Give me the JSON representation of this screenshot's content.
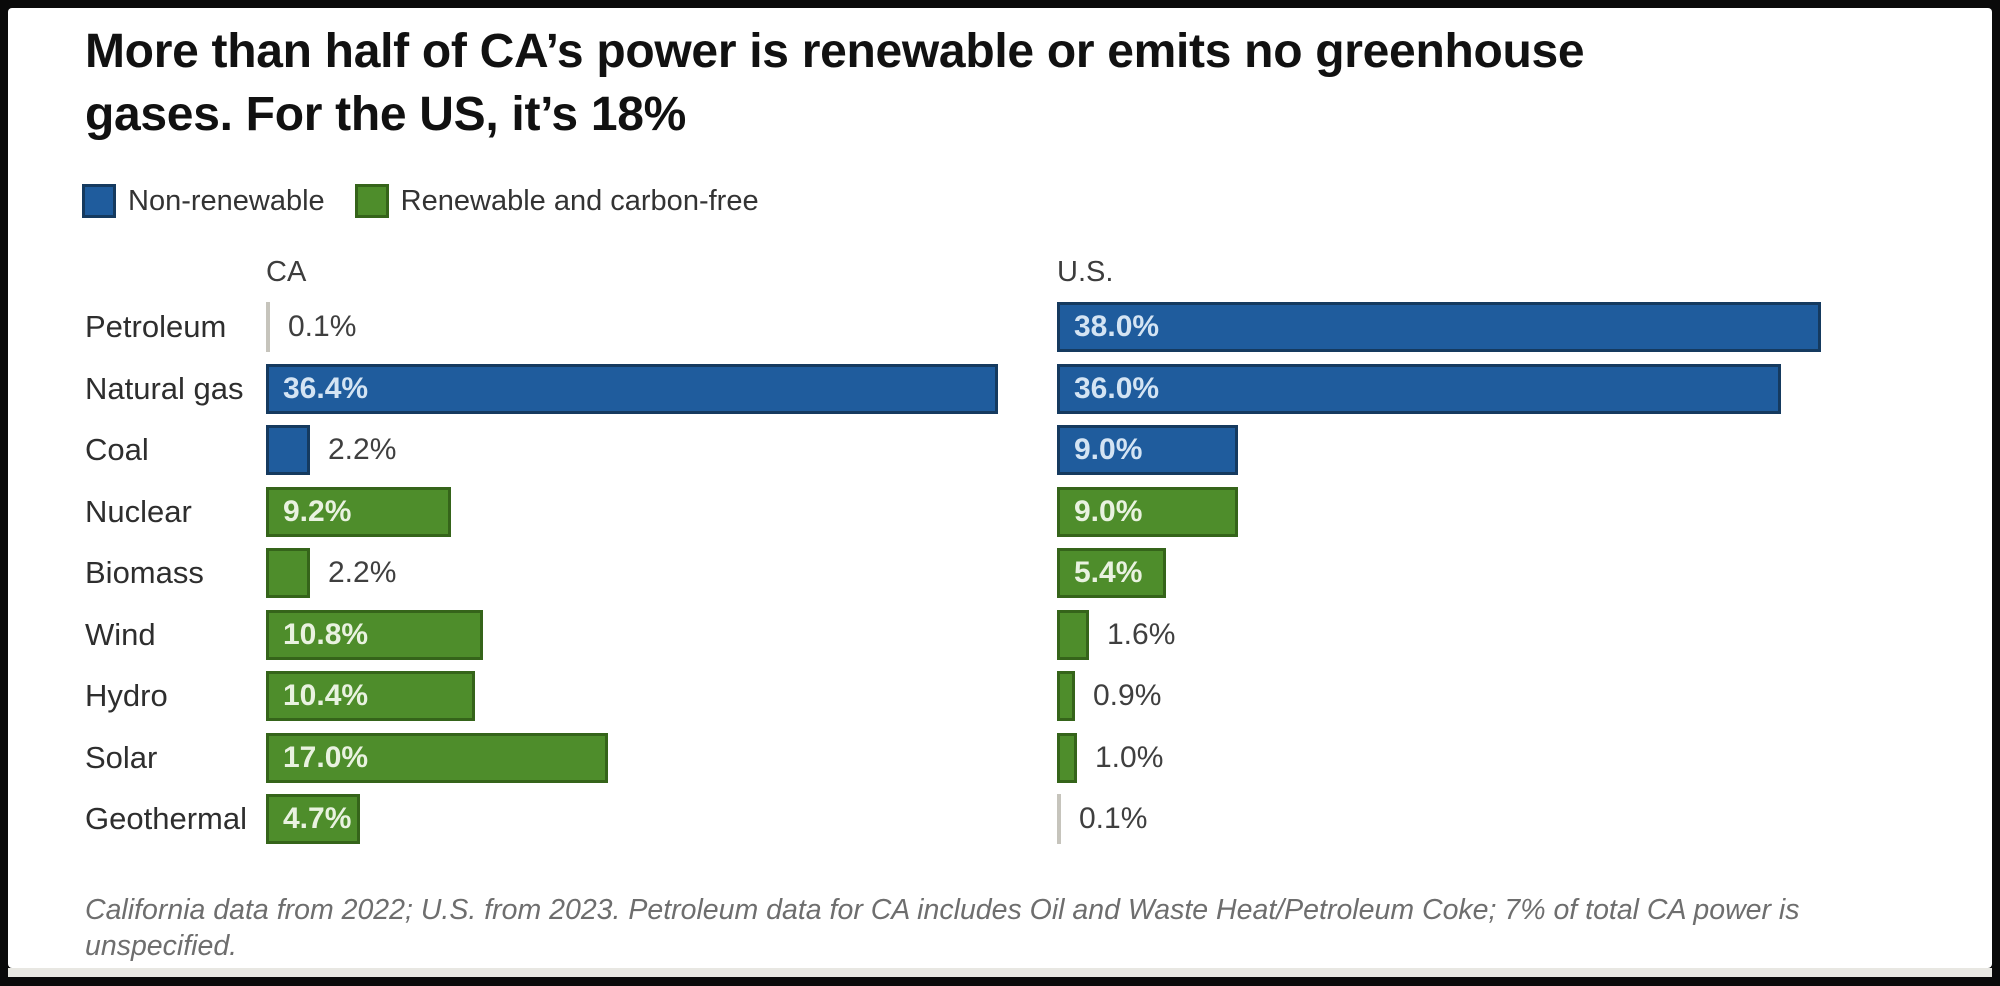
{
  "title": {
    "line1": "More than half of CA’s power is renewable or emits no greenhouse",
    "line2": "gases. For the US, it’s 18%"
  },
  "legend": [
    {
      "label": "Non-renewable",
      "color": "#1f5c9d",
      "border": "#153a5f"
    },
    {
      "label": "Renewable and carbon-free",
      "color": "#4e8d2b",
      "border": "#35641a"
    }
  ],
  "columns": {
    "left": "CA",
    "right": "U.S."
  },
  "footnote": "California data from 2022; U.S. from 2023. Petroleum data for CA includes Oil and Waste Heat/Petroleum Coke; 7% of total CA power is unspecified.",
  "colors": {
    "nonrenewable_fill": "#1f5c9d",
    "nonrenewable_border": "#153a5f",
    "nonrenewable_text": "#d4e4f3",
    "renewable_fill": "#4e8d2b",
    "renewable_border": "#35641a",
    "renewable_text": "#e9f2e0",
    "tiny_bar": "#c6c4bc",
    "outside_label": "#3f3f3f"
  },
  "chart_data": {
    "type": "bar",
    "orientation": "horizontal",
    "title": "More than half of CA’s power is renewable or emits no greenhouse gases. For the US, it’s 18%",
    "categories": [
      "Petroleum",
      "Natural gas",
      "Coal",
      "Nuclear",
      "Biomass",
      "Wind",
      "Hydro",
      "Solar",
      "Geothermal"
    ],
    "category_types": [
      "nonrenewable",
      "nonrenewable",
      "nonrenewable",
      "renewable",
      "renewable",
      "renewable",
      "renewable",
      "renewable",
      "renewable"
    ],
    "series": [
      {
        "name": "CA",
        "values": [
          0.1,
          36.4,
          2.2,
          9.2,
          2.2,
          10.8,
          10.4,
          17.0,
          4.7
        ],
        "labels": [
          "0.1%",
          "36.4%",
          "2.2%",
          "9.2%",
          "2.2%",
          "10.8%",
          "10.4%",
          "17.0%",
          "4.7%"
        ]
      },
      {
        "name": "U.S.",
        "values": [
          38.0,
          36.0,
          9.0,
          9.0,
          5.4,
          1.6,
          0.9,
          1.0,
          0.1
        ],
        "labels": [
          "38.0%",
          "36.0%",
          "9.0%",
          "9.0%",
          "5.4%",
          "1.6%",
          "0.9%",
          "1.0%",
          "0.1%"
        ]
      }
    ],
    "xmax": 40,
    "grid": false,
    "legend_position": "top",
    "xlabel": "",
    "ylabel": ""
  }
}
